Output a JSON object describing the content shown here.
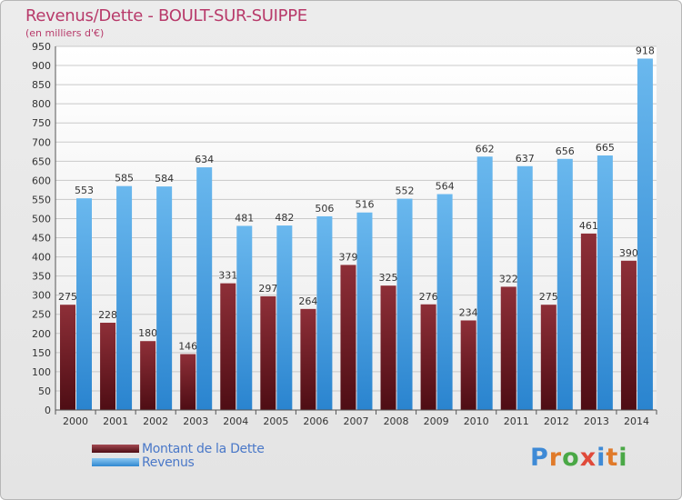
{
  "chart_data": {
    "type": "bar",
    "title": "Revenus/Dette - BOULT-SUR-SUIPPE",
    "subtitle": "(en milliers d'€)",
    "categories": [
      "2000",
      "2001",
      "2002",
      "2003",
      "2004",
      "2005",
      "2006",
      "2007",
      "2008",
      "2009",
      "2010",
      "2011",
      "2012",
      "2013",
      "2014"
    ],
    "series": [
      {
        "name": "Montant de la Dette",
        "color": "#7a1c26",
        "values": [
          275,
          228,
          180,
          146,
          331,
          297,
          264,
          379,
          325,
          276,
          234,
          322,
          275,
          461,
          390
        ]
      },
      {
        "name": "Revenus",
        "color": "#4ba3e3",
        "values": [
          553,
          585,
          584,
          634,
          481,
          482,
          506,
          516,
          552,
          564,
          662,
          637,
          656,
          665,
          918
        ]
      }
    ],
    "yticks": [
      0,
      50,
      100,
      150,
      200,
      250,
      300,
      350,
      400,
      450,
      500,
      550,
      600,
      650,
      700,
      750,
      800,
      850,
      900,
      950
    ],
    "ylim": [
      0,
      950
    ],
    "grid": true,
    "legend_position": "bottom-left"
  },
  "brand": {
    "letters": [
      "P",
      "r",
      "o",
      "x",
      "i",
      "t",
      "i"
    ],
    "colors": [
      "#3e8ad6",
      "#e07a2a",
      "#4aa846",
      "#e04a3a",
      "#3e8ad6",
      "#e07a2a",
      "#4aa846"
    ]
  }
}
